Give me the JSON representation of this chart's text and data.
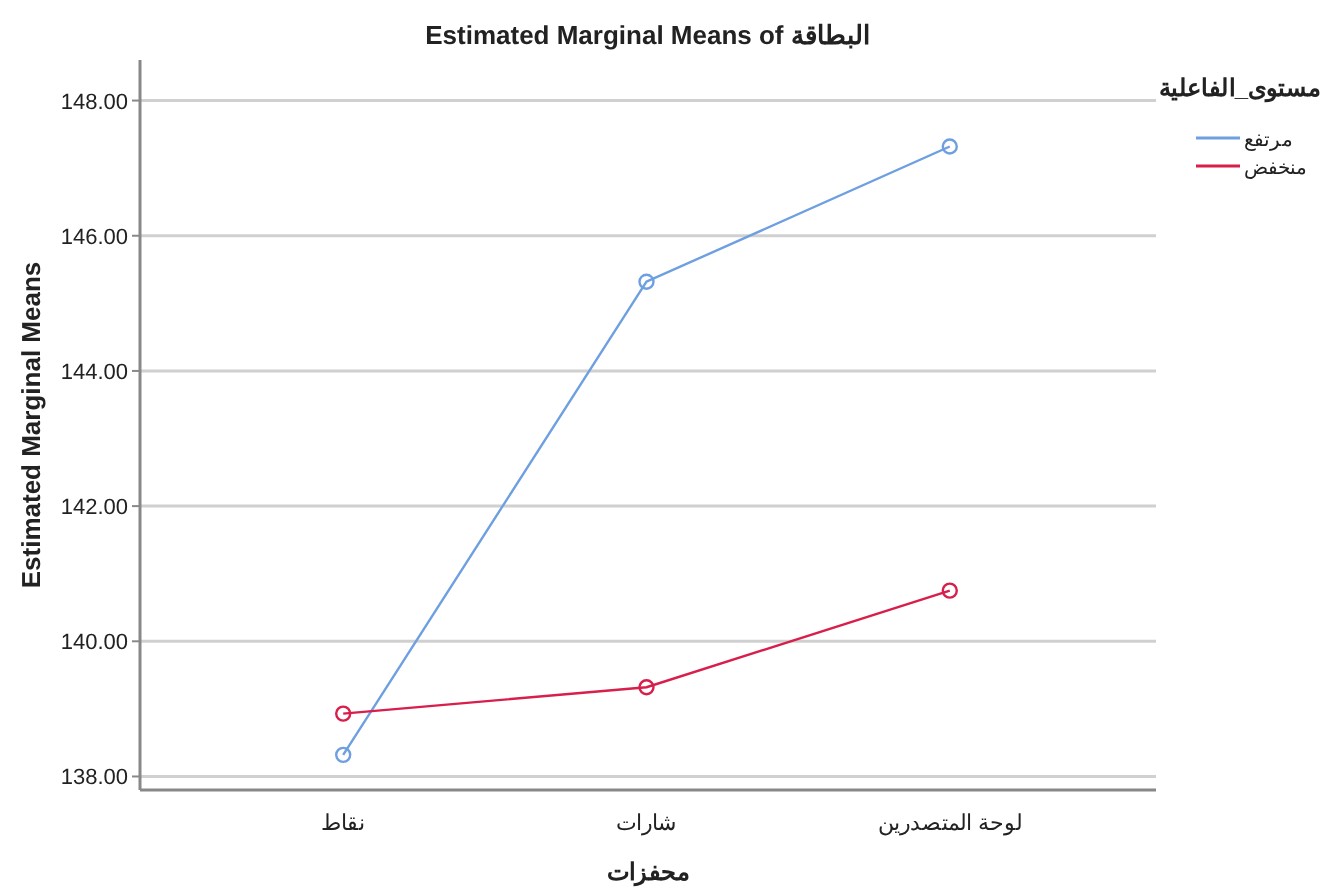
{
  "chart_data": {
    "type": "line",
    "title": "Estimated Marginal Means of البطاقة",
    "xlabel": "محفزات",
    "ylabel": "Estimated Marginal Means",
    "legend_title": "مستوى_الفاعلية",
    "categories": [
      "نقاط",
      "شارات",
      "لوحة المتصدرين"
    ],
    "series": [
      {
        "name": "مرتفع",
        "color": "#6e9fe0",
        "values": [
          138.32,
          145.32,
          147.32
        ]
      },
      {
        "name": "منخفض",
        "color": "#d81e4a",
        "values": [
          138.93,
          139.32,
          140.75
        ]
      }
    ],
    "ylim": [
      137.8,
      148.6
    ],
    "yticks": [
      {
        "value": 138,
        "label": "138.00"
      },
      {
        "value": 140,
        "label": "140.00"
      },
      {
        "value": 142,
        "label": "142.00"
      },
      {
        "value": 144,
        "label": "144.00"
      },
      {
        "value": 146,
        "label": "146.00"
      },
      {
        "value": 148,
        "label": "148.00"
      }
    ],
    "grid": "y",
    "legend": "top right",
    "marker": "circle",
    "line_style": "solid"
  }
}
